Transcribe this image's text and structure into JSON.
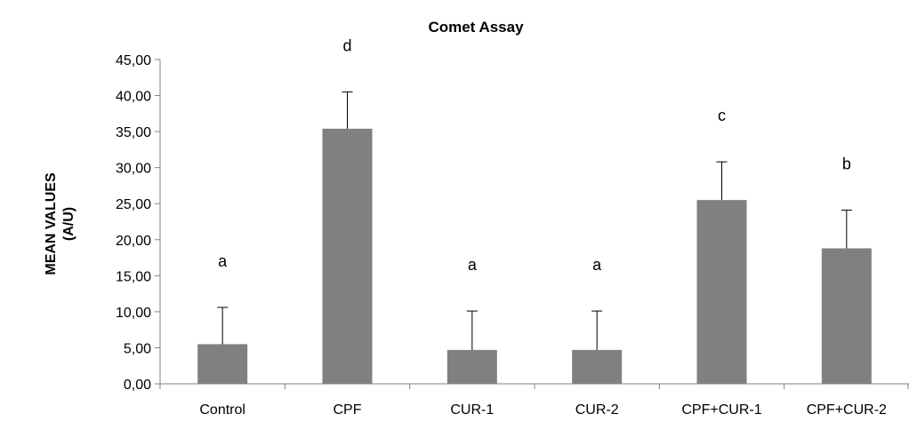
{
  "chart_data": {
    "type": "bar",
    "title": "Comet Assay",
    "xlabel": "",
    "ylabel_lines": [
      "MEAN VALUES",
      "(A/U)"
    ],
    "categories": [
      "Control",
      "CPF",
      "CUR-1",
      "CUR-2",
      "CPF+CUR-1",
      "CPF+CUR-2"
    ],
    "values": [
      5.5,
      35.4,
      4.7,
      4.7,
      25.5,
      18.8
    ],
    "errors": [
      5.1,
      5.1,
      5.4,
      5.4,
      5.3,
      5.3
    ],
    "letters": [
      "a",
      "d",
      "a",
      "a",
      "c",
      "b"
    ],
    "ylim": [
      0,
      45
    ],
    "ytick_values": [
      0,
      5,
      10,
      15,
      20,
      25,
      30,
      35,
      40,
      45
    ],
    "ytick_labels": [
      "0,00",
      "5,00",
      "10,00",
      "15,00",
      "20,00",
      "25,00",
      "30,00",
      "35,00",
      "40,00",
      "45,00"
    ],
    "bar_color": "#808080",
    "axis_color": "#808080",
    "grid": false,
    "legend": "none"
  }
}
